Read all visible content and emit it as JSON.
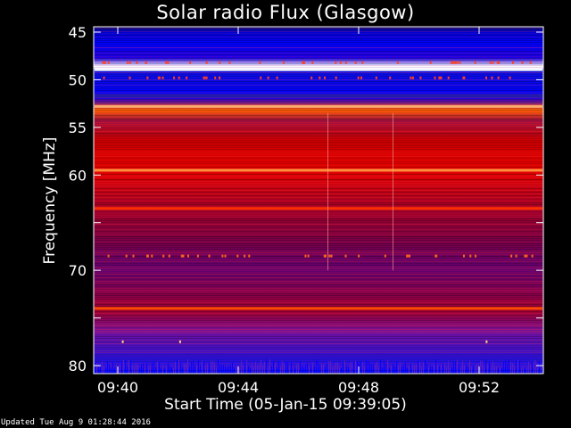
{
  "chart_data": {
    "type": "heatmap",
    "title": "Solar radio Flux (Glasgow)",
    "xlabel": "Start Time (05-Jan-15 09:39:05)",
    "ylabel": "Frequency [MHz]",
    "x_range": [
      "09:39:05",
      "09:55:00"
    ],
    "x_ticks": [
      "09:40",
      "09:44",
      "09:48",
      "09:52"
    ],
    "y_range": [
      45,
      80
    ],
    "y_scale": "linear, increasing downward",
    "y_ticks": [
      45,
      50,
      55,
      60,
      65,
      70,
      75,
      80
    ],
    "y_tick_labels": [
      "45",
      "50",
      "55",
      "60",
      "",
      "70",
      "",
      "80"
    ],
    "colormap": [
      "#000060",
      "#0000ff",
      "#5010c0",
      "#9a0a50",
      "#c80000",
      "#ff2000",
      "#ff8000",
      "#ffffff"
    ],
    "bright_bands_mhz": [
      48.9,
      52.8,
      59.5,
      63.5,
      74.0
    ],
    "grid": false
  },
  "footer": "Updated Tue Aug  9 01:28:44 2016"
}
